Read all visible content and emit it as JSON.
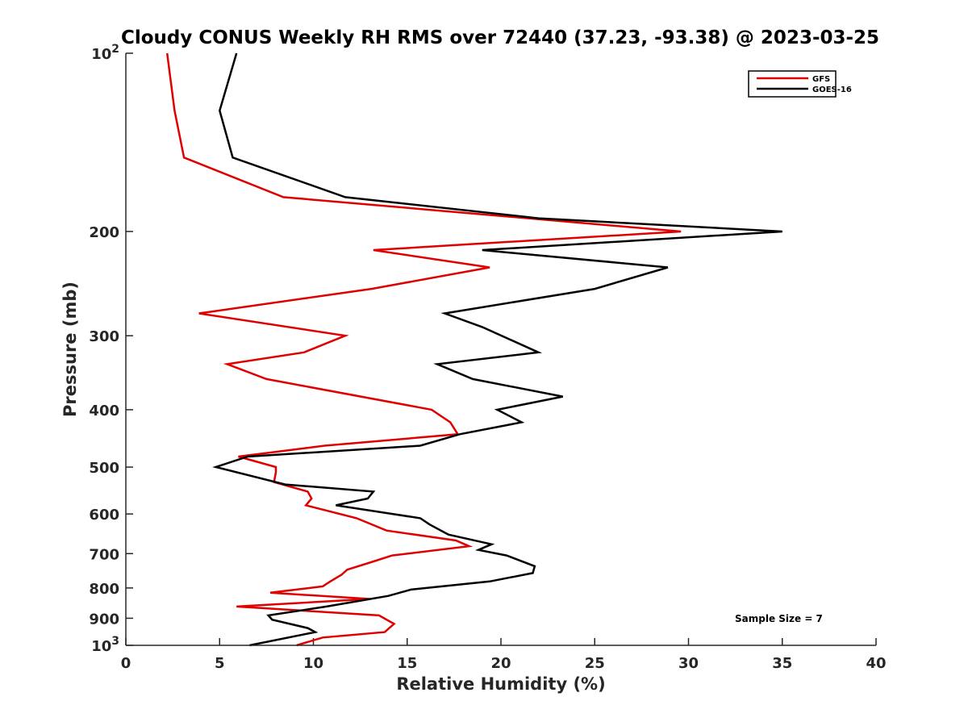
{
  "chart_data": {
    "type": "line",
    "title": "Cloudy CONUS Weekly RH RMS over 72440 (37.23, -93.38) @ 2023-03-25",
    "xlabel": "Relative Humidity (%)",
    "ylabel": "Pressure (mb)",
    "xlim": [
      0,
      40
    ],
    "ylim": [
      100,
      1000
    ],
    "y_scale": "log",
    "y_reversed": true,
    "grid": false,
    "legend_position": "top-right",
    "annotation": "Sample Size = 7",
    "x_ticks": [
      0,
      5,
      10,
      15,
      20,
      25,
      30,
      35,
      40
    ],
    "x_tick_labels": [
      "0",
      "5",
      "10",
      "15",
      "20",
      "25",
      "30",
      "35",
      "40"
    ],
    "y_ticks": [
      100,
      200,
      300,
      400,
      500,
      600,
      700,
      800,
      900,
      1000
    ],
    "y_tick_labels": [
      {
        "base": "10",
        "exp": "2"
      },
      {
        "base": "200",
        "exp": ""
      },
      {
        "base": "300",
        "exp": ""
      },
      {
        "base": "400",
        "exp": ""
      },
      {
        "base": "500",
        "exp": ""
      },
      {
        "base": "600",
        "exp": ""
      },
      {
        "base": "700",
        "exp": ""
      },
      {
        "base": "800",
        "exp": ""
      },
      {
        "base": "900",
        "exp": ""
      },
      {
        "base": "10",
        "exp": "3"
      }
    ],
    "series": [
      {
        "name": "GFS",
        "color": "#e00000",
        "points": [
          [
            2.2,
            100
          ],
          [
            2.6,
            125
          ],
          [
            3.1,
            150
          ],
          [
            8.4,
            175
          ],
          [
            29.6,
            200
          ],
          [
            13.2,
            215
          ],
          [
            19.4,
            230
          ],
          [
            13.1,
            250
          ],
          [
            3.9,
            275
          ],
          [
            11.7,
            300
          ],
          [
            9.5,
            320
          ],
          [
            5.4,
            335
          ],
          [
            7.5,
            355
          ],
          [
            16.3,
            400
          ],
          [
            17.3,
            420
          ],
          [
            17.7,
            440
          ],
          [
            10.6,
            460
          ],
          [
            6.0,
            480
          ],
          [
            8.0,
            500
          ],
          [
            8.0,
            510
          ],
          [
            7.9,
            530
          ],
          [
            9.7,
            550
          ],
          [
            9.9,
            565
          ],
          [
            9.6,
            580
          ],
          [
            12.3,
            610
          ],
          [
            13.9,
            640
          ],
          [
            17.6,
            665
          ],
          [
            18.3,
            680
          ],
          [
            14.2,
            705
          ],
          [
            13.0,
            725
          ],
          [
            11.8,
            745
          ],
          [
            11.5,
            760
          ],
          [
            10.9,
            780
          ],
          [
            10.5,
            795
          ],
          [
            7.7,
            815
          ],
          [
            13.0,
            835
          ],
          [
            5.9,
            860
          ],
          [
            13.5,
            890
          ],
          [
            14.3,
            920
          ],
          [
            13.8,
            950
          ],
          [
            10.5,
            970
          ],
          [
            9.1,
            1000
          ]
        ]
      },
      {
        "name": "GOES-16",
        "color": "#000000",
        "points": [
          [
            5.9,
            100
          ],
          [
            5.0,
            125
          ],
          [
            5.7,
            150
          ],
          [
            11.7,
            175
          ],
          [
            22.0,
            190
          ],
          [
            35.0,
            200
          ],
          [
            19.0,
            215
          ],
          [
            28.9,
            230
          ],
          [
            25.0,
            250
          ],
          [
            17.0,
            275
          ],
          [
            19.0,
            290
          ],
          [
            22.0,
            320
          ],
          [
            16.6,
            335
          ],
          [
            18.5,
            355
          ],
          [
            23.3,
            380
          ],
          [
            19.8,
            400
          ],
          [
            21.1,
            420
          ],
          [
            17.8,
            440
          ],
          [
            15.7,
            460
          ],
          [
            6.5,
            480
          ],
          [
            4.8,
            500
          ],
          [
            8.5,
            535
          ],
          [
            13.2,
            550
          ],
          [
            12.9,
            565
          ],
          [
            11.2,
            580
          ],
          [
            15.7,
            610
          ],
          [
            16.2,
            625
          ],
          [
            17.2,
            650
          ],
          [
            19.5,
            675
          ],
          [
            18.8,
            690
          ],
          [
            20.3,
            705
          ],
          [
            21.8,
            735
          ],
          [
            21.7,
            755
          ],
          [
            19.4,
            780
          ],
          [
            15.2,
            805
          ],
          [
            14.0,
            825
          ],
          [
            10.7,
            860
          ],
          [
            7.6,
            890
          ],
          [
            7.8,
            905
          ],
          [
            9.7,
            935
          ],
          [
            10.1,
            950
          ],
          [
            6.6,
            1000
          ]
        ]
      }
    ]
  }
}
